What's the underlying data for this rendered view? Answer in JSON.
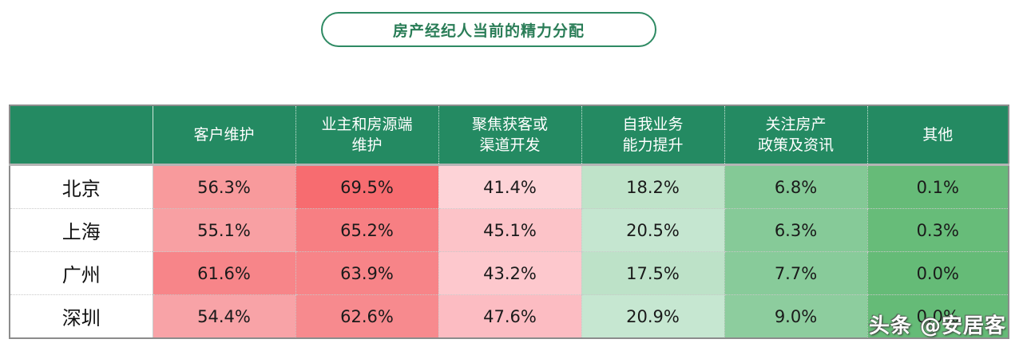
{
  "title": "房产经纪人当前的精力分配",
  "table": {
    "corner": "",
    "headers": [
      [
        "客户维护"
      ],
      [
        "业主和房源端",
        "维护"
      ],
      [
        "聚焦获客或",
        "渠道开发"
      ],
      [
        "自我业务",
        "能力提升"
      ],
      [
        "关注房产",
        "政策及资讯"
      ],
      [
        "其他"
      ]
    ],
    "rows": [
      {
        "city": "北京",
        "values": [
          "56.3%",
          "69.5%",
          "41.4%",
          "18.2%",
          "6.8%",
          "0.1%"
        ]
      },
      {
        "city": "上海",
        "values": [
          "55.1%",
          "65.2%",
          "45.1%",
          "20.5%",
          "6.3%",
          "0.3%"
        ]
      },
      {
        "city": "广州",
        "values": [
          "61.6%",
          "63.9%",
          "43.2%",
          "17.5%",
          "7.7%",
          "0.0%"
        ]
      },
      {
        "city": "深圳",
        "values": [
          "54.4%",
          "62.6%",
          "47.6%",
          "20.9%",
          "9.0%",
          "0.0%"
        ]
      }
    ],
    "colors": {
      "header_bg": "#248a62",
      "cells": [
        [
          "#f89a9c",
          "#f76c70",
          "#fdd3d7",
          "#bfe3c9",
          "#84c996",
          "#66bb78"
        ],
        [
          "#f8a0a3",
          "#f77f83",
          "#fcc3c8",
          "#c5e6d0",
          "#86ca98",
          "#67bc79"
        ],
        [
          "#f78589",
          "#f78488",
          "#fdc8cd",
          "#bde2c8",
          "#88cb9a",
          "#65bb77"
        ],
        [
          "#f8a3a7",
          "#f78a8e",
          "#fcbcc2",
          "#c6e7d1",
          "#8dcd9e",
          "#65bb77"
        ]
      ]
    }
  },
  "watermark": "头条 @安居客",
  "chart_data": {
    "type": "heatmap",
    "title": "房产经纪人当前的精力分配",
    "categories": [
      "客户维护",
      "业主和房源端维护",
      "聚焦获客或渠道开发",
      "自我业务能力提升",
      "关注房产政策及资讯",
      "其他"
    ],
    "series": [
      {
        "name": "北京",
        "values": [
          56.3,
          69.5,
          41.4,
          18.2,
          6.8,
          0.1
        ]
      },
      {
        "name": "上海",
        "values": [
          55.1,
          65.2,
          45.1,
          20.5,
          6.3,
          0.3
        ]
      },
      {
        "name": "广州",
        "values": [
          61.6,
          63.9,
          43.2,
          17.5,
          7.7,
          0.0
        ]
      },
      {
        "name": "深圳",
        "values": [
          54.4,
          62.6,
          47.6,
          20.9,
          9.0,
          0.0
        ]
      }
    ],
    "unit": "%",
    "color_scale": "red (high) to green (low)"
  }
}
